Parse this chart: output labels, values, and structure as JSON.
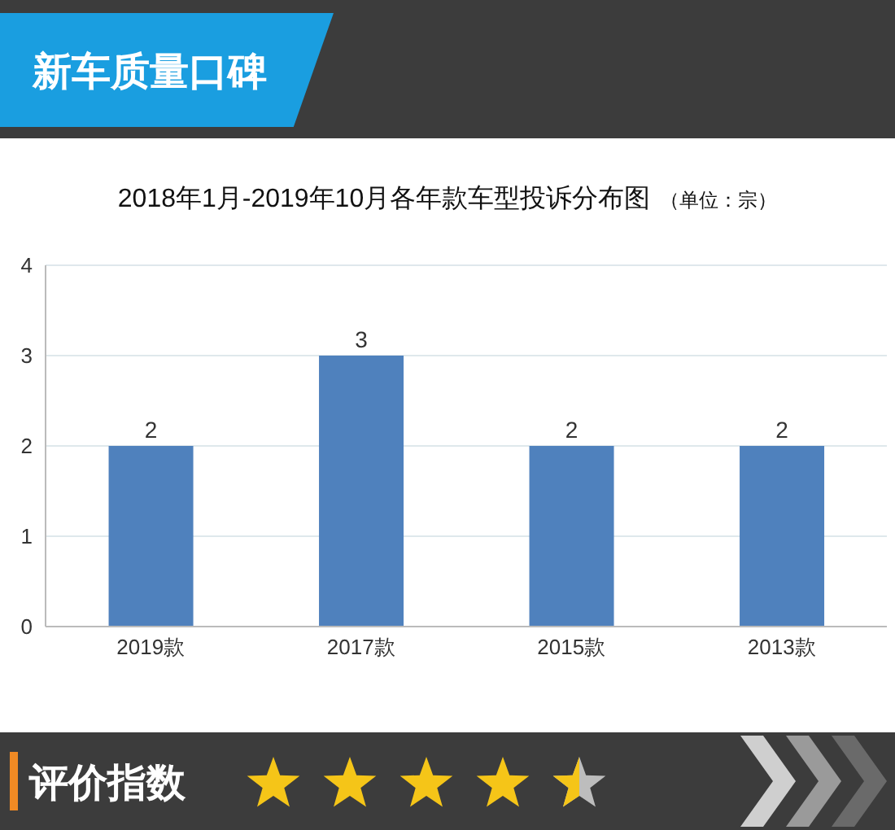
{
  "chart_data": {
    "type": "bar",
    "title": "2018年1月-2019年10月各年款车型投诉分布图",
    "subtitle": "（单位：宗）",
    "categories": [
      "2019款",
      "2017款",
      "2015款",
      "2013款"
    ],
    "values": [
      2,
      3,
      2,
      2
    ],
    "color": "#4f81bd",
    "ylim": [
      0,
      4
    ],
    "yticks": [
      0,
      1,
      2,
      3,
      4
    ],
    "grid": "y",
    "data_labels": true,
    "annotations": [
      "新车质量口碑",
      "评价指数"
    ]
  }
}
